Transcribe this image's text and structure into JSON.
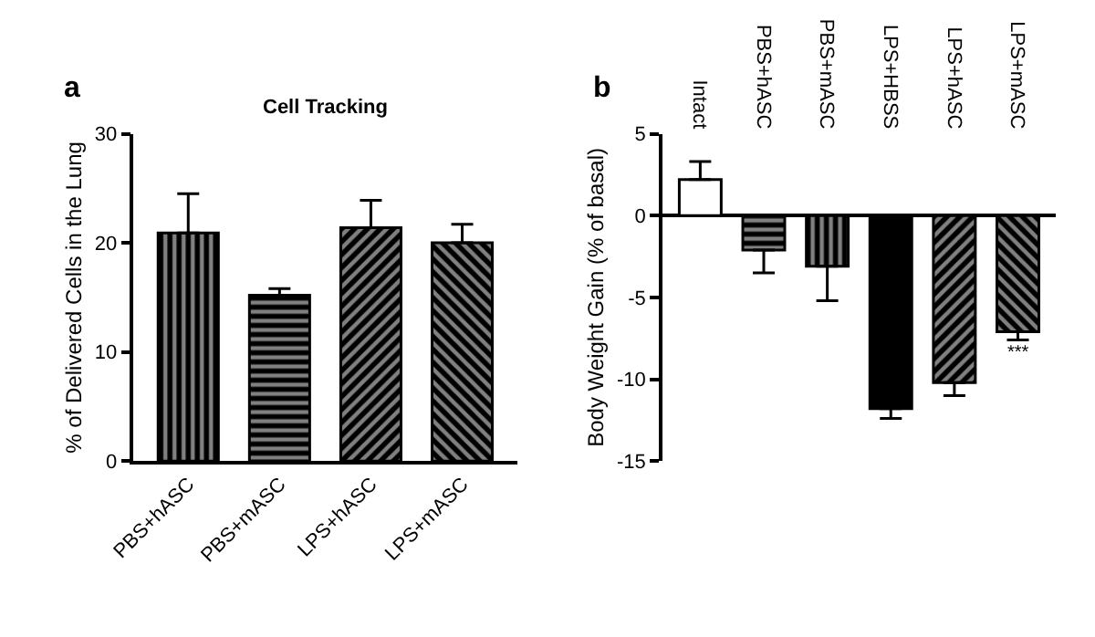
{
  "chart_data": [
    {
      "type": "bar",
      "title": "Cell Tracking",
      "ylabel": "% of Delivered Cells in the Lung",
      "categories": [
        "PBS+hASC",
        "PBS+mASC",
        "LPS+hASC",
        "LPS+mASC"
      ],
      "values": [
        20.9,
        15.2,
        21.4,
        20.0
      ],
      "errors": [
        [
          20.9,
          24.5
        ],
        [
          15.2,
          15.8
        ],
        [
          21.4,
          23.9
        ],
        [
          20.0,
          21.7
        ]
      ],
      "colors": [
        "#000000",
        "#000000",
        "#000000",
        "#000000"
      ],
      "ylim": [
        0,
        30
      ],
      "yticks": [
        0,
        10,
        20,
        30
      ],
      "annotations": [
        "a"
      ]
    },
    {
      "type": "bar",
      "ylabel": "Body Weight Gain (% of basal)",
      "categories": [
        "Intact",
        "PBS+hASC",
        "PBS+mASC",
        "LPS+HBSS",
        "LPS+hASC",
        "LPS+mASC"
      ],
      "values": [
        2.2,
        -2.1,
        -3.1,
        -11.8,
        -10.2,
        -7.1
      ],
      "errors": [
        [
          2.2,
          3.3
        ],
        [
          -3.5,
          -2.1
        ],
        [
          -5.2,
          -3.1
        ],
        [
          -12.4,
          -11.8
        ],
        [
          -11.0,
          -10.2
        ],
        [
          -7.6,
          -7.1
        ]
      ],
      "colors": [
        "#ffffff",
        "#000000",
        "#000000",
        "#000000",
        "#000000",
        "#000000"
      ],
      "ylim": [
        -15,
        5
      ],
      "yticks": [
        -15,
        -10,
        -5,
        0,
        5
      ],
      "annotations": [
        "b",
        {
          "text": "***",
          "x": "LPS+mASC",
          "y": -7.6
        }
      ]
    }
  ]
}
